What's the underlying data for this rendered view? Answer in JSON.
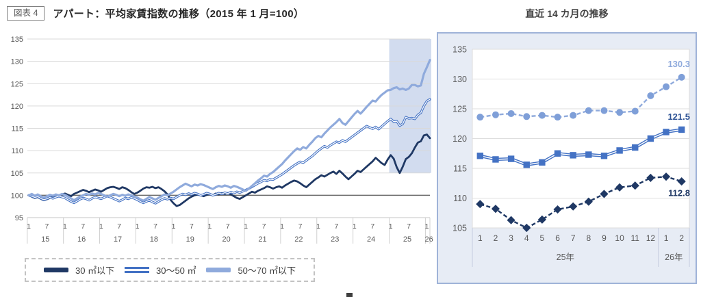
{
  "figure_label": "図表 4",
  "title": "アパート：平均家賃指数の推移（2015 年 1 月=100）",
  "right_title": "直近 14 カ月の推移",
  "colors": {
    "navy": "#1F3864",
    "blue": "#4472C4",
    "light_blue": "#8FAADC",
    "light_marker": "#7F9FD8",
    "label_blue": "#2F5496",
    "axis_text": "#595959",
    "grid": "#D9D9D9",
    "baseline": "#6A6A6A",
    "shade": "#D2DCEF",
    "panel_bg": "#E7ECF5",
    "panel_border": "#9FB3D8"
  },
  "legend": [
    {
      "label": "30 ㎡以下"
    },
    {
      "label": "30～50 ㎡"
    },
    {
      "label": "50～70 ㎡以下"
    }
  ],
  "chart_data": [
    {
      "id": "main",
      "type": "line",
      "title": "アパート：平均家賃指数の推移（2015 年 1 月=100）",
      "ylim": [
        95,
        135
      ],
      "y_ticks": [
        95,
        100,
        105,
        110,
        115,
        120,
        125,
        130,
        135
      ],
      "baseline_value": 100,
      "x_month_labels": [
        "1",
        "7"
      ],
      "x_years": [
        "15",
        "16",
        "17",
        "18",
        "19",
        "20",
        "21",
        "22",
        "23",
        "24",
        "25",
        "26"
      ],
      "months_range": "2015-01 to 2026-02",
      "highlight_last_months": 14,
      "highlight_value_range": [
        105,
        135
      ],
      "series": [
        {
          "name": "30 ㎡以下",
          "style": "navy-solid",
          "values": [
            100.0,
            99.7,
            99.4,
            99.6,
            99.2,
            98.9,
            99.1,
            99.4,
            99.8,
            99.6,
            100.0,
            100.2,
            100.4,
            100.1,
            99.8,
            100.3,
            100.6,
            100.9,
            101.2,
            101.0,
            100.7,
            101.0,
            101.3,
            101.1,
            100.8,
            101.2,
            101.6,
            101.8,
            101.9,
            101.7,
            101.4,
            101.8,
            101.6,
            101.2,
            100.7,
            100.3,
            100.6,
            101.0,
            101.5,
            101.8,
            101.7,
            101.9,
            101.6,
            101.8,
            101.4,
            100.9,
            100.2,
            99.0,
            98.2,
            97.6,
            97.8,
            98.3,
            98.8,
            99.3,
            99.7,
            100.0,
            100.2,
            100.0,
            99.8,
            100.1,
            100.3,
            100.0,
            100.4,
            100.2,
            100.5,
            100.3,
            100.5,
            100.2,
            99.8,
            99.4,
            99.2,
            99.6,
            100.0,
            100.4,
            100.8,
            100.6,
            101.0,
            101.3,
            101.6,
            102.0,
            101.8,
            101.5,
            101.8,
            102.0,
            101.7,
            102.2,
            102.6,
            103.0,
            103.3,
            103.1,
            102.7,
            102.2,
            101.8,
            102.4,
            103.0,
            103.6,
            104.0,
            104.5,
            104.2,
            104.6,
            105.0,
            105.3,
            104.8,
            105.5,
            104.9,
            104.2,
            103.6,
            104.2,
            104.8,
            105.5,
            105.2,
            105.8,
            106.4,
            107.0,
            107.6,
            108.4,
            107.8,
            107.2,
            106.8,
            108.0,
            109.0,
            108.2,
            106.3,
            105.0,
            106.4,
            108.1,
            108.6,
            109.4,
            110.7,
            111.8,
            112.1,
            113.4,
            113.6,
            112.8
          ]
        },
        {
          "name": "30～50 ㎡",
          "style": "blue-double",
          "values": [
            100.0,
            99.8,
            99.5,
            99.7,
            99.3,
            99.0,
            99.2,
            99.5,
            99.3,
            99.6,
            99.8,
            99.6,
            99.4,
            99.0,
            98.6,
            98.3,
            98.7,
            99.1,
            99.4,
            99.2,
            98.9,
            99.3,
            99.6,
            99.4,
            99.2,
            99.5,
            99.8,
            99.6,
            99.3,
            99.0,
            98.7,
            99.0,
            99.4,
            99.2,
            99.5,
            99.3,
            99.0,
            98.6,
            98.3,
            98.6,
            98.9,
            98.5,
            98.2,
            98.6,
            99.0,
            99.3,
            99.1,
            99.4,
            99.2,
            99.6,
            100.0,
            100.3,
            100.1,
            100.4,
            100.2,
            100.5,
            100.3,
            100.0,
            100.2,
            100.5,
            100.3,
            100.0,
            100.2,
            100.5,
            100.3,
            100.6,
            100.4,
            100.7,
            100.5,
            100.8,
            100.6,
            100.9,
            101.2,
            101.5,
            101.9,
            102.3,
            102.7,
            103.0,
            103.4,
            103.2,
            103.6,
            103.5,
            103.9,
            104.3,
            104.7,
            105.2,
            105.7,
            106.2,
            106.7,
            107.1,
            107.5,
            107.3,
            107.8,
            108.3,
            108.8,
            109.4,
            110.0,
            110.5,
            111.0,
            110.7,
            111.2,
            111.6,
            112.0,
            111.8,
            112.3,
            112.0,
            112.5,
            113.0,
            113.5,
            114.0,
            114.5,
            115.0,
            115.5,
            115.2,
            114.9,
            115.3,
            114.8,
            115.4,
            116.0,
            116.6,
            117.1,
            116.5,
            116.6,
            115.6,
            116.0,
            117.5,
            117.2,
            117.3,
            117.1,
            118.0,
            118.5,
            120.0,
            121.1,
            121.5
          ]
        },
        {
          "name": "50～70 ㎡以下",
          "style": "lightblue-solid",
          "values": [
            100.0,
            100.3,
            99.9,
            100.2,
            99.8,
            99.5,
            99.8,
            100.1,
            99.9,
            100.2,
            100.0,
            100.3,
            100.1,
            99.7,
            99.3,
            98.9,
            99.3,
            99.7,
            100.0,
            100.3,
            100.1,
            100.4,
            100.2,
            100.5,
            100.3,
            100.0,
            99.7,
            100.0,
            100.3,
            100.1,
            99.8,
            100.1,
            99.9,
            100.2,
            100.0,
            99.7,
            99.5,
            99.1,
            98.8,
            99.2,
            99.6,
            99.3,
            99.0,
            99.4,
            99.8,
            100.2,
            100.0,
            100.4,
            100.8,
            101.3,
            101.8,
            102.2,
            102.6,
            102.3,
            102.0,
            102.4,
            102.2,
            102.5,
            102.3,
            102.0,
            101.7,
            101.4,
            101.8,
            102.1,
            101.9,
            102.2,
            102.0,
            101.7,
            102.1,
            101.9,
            101.6,
            101.3,
            101.0,
            101.5,
            102.1,
            102.7,
            103.3,
            103.8,
            104.4,
            104.2,
            104.8,
            105.2,
            105.8,
            106.4,
            107.0,
            107.8,
            108.5,
            109.2,
            109.9,
            110.5,
            110.2,
            110.8,
            110.5,
            111.3,
            112.0,
            112.8,
            113.3,
            113.0,
            113.8,
            114.5,
            115.2,
            115.8,
            116.4,
            117.1,
            116.2,
            115.8,
            116.6,
            117.4,
            118.2,
            118.9,
            118.3,
            119.0,
            119.8,
            120.5,
            121.2,
            121.0,
            121.8,
            122.5,
            123.0,
            123.5,
            123.6,
            124.0,
            124.2,
            123.7,
            123.9,
            123.6,
            123.9,
            124.7,
            124.7,
            124.4,
            124.6,
            127.2,
            128.7,
            130.3
          ]
        }
      ]
    },
    {
      "id": "recent",
      "type": "line",
      "title": "直近 14 カ月の推移",
      "ylim": [
        105,
        135
      ],
      "y_ticks": [
        105,
        110,
        115,
        120,
        125,
        130,
        135
      ],
      "x_labels": [
        "1",
        "2",
        "3",
        "4",
        "5",
        "6",
        "7",
        "8",
        "9",
        "10",
        "11",
        "12",
        "1",
        "2"
      ],
      "x_groups": [
        {
          "label": "25年",
          "months": 12
        },
        {
          "label": "26年",
          "months": 2
        }
      ],
      "series": [
        {
          "name": "30 ㎡以下",
          "marker": "diamond",
          "line": "dashed",
          "values": [
            109.0,
            108.2,
            106.3,
            105.0,
            106.4,
            108.1,
            108.6,
            109.4,
            110.7,
            111.8,
            112.1,
            113.4,
            113.6,
            112.8
          ],
          "end_label": "112.8",
          "label_value": 110.8
        },
        {
          "name": "30～50 ㎡",
          "marker": "square",
          "line": "double",
          "values": [
            117.1,
            116.5,
            116.6,
            115.6,
            116.0,
            117.5,
            117.2,
            117.3,
            117.1,
            118.0,
            118.5,
            120.0,
            121.1,
            121.5
          ],
          "end_label": "121.5",
          "label_value": 123.6
        },
        {
          "name": "50～70 ㎡以下",
          "marker": "circle",
          "line": "dashed",
          "values": [
            123.6,
            124.0,
            124.2,
            123.7,
            123.9,
            123.6,
            123.9,
            124.7,
            124.7,
            124.4,
            124.6,
            127.2,
            128.7,
            130.3
          ],
          "end_label": "130.3",
          "label_value": 132.5
        }
      ]
    }
  ]
}
